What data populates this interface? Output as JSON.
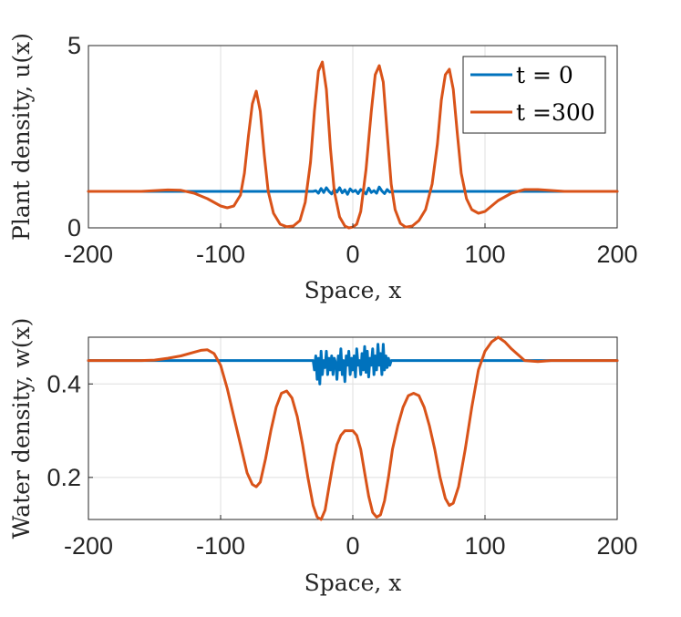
{
  "chart_data": [
    {
      "type": "line",
      "xlabel": "Space, x",
      "ylabel": "Plant density, u(x)",
      "xlim": [
        -200,
        200
      ],
      "ylim": [
        0,
        5
      ],
      "xticks": [
        "-200",
        "-100",
        "0",
        "100",
        "200"
      ],
      "yticks": [
        "0",
        "5"
      ],
      "xtick_values": [
        -200,
        -100,
        0,
        100,
        200
      ],
      "ytick_values": [
        0,
        5
      ],
      "grid": true,
      "legend": {
        "placement": "top-right",
        "entries": [
          "t = 0",
          "t =300"
        ]
      },
      "series": [
        {
          "name": "t = 0",
          "color": "#0072BD",
          "x": [
            -200,
            -30,
            -28,
            -26,
            -24,
            -22,
            -20,
            -18,
            -16,
            -14,
            -12,
            -10,
            -8,
            -6,
            -4,
            -2,
            0,
            2,
            4,
            6,
            8,
            10,
            12,
            14,
            16,
            18,
            20,
            22,
            24,
            26,
            28,
            30,
            200
          ],
          "y": [
            1.0,
            1.0,
            1.02,
            0.95,
            1.08,
            0.97,
            1.1,
            1.0,
            0.93,
            1.06,
            0.98,
            1.1,
            0.96,
            1.04,
            0.92,
            1.07,
            0.99,
            1.03,
            0.94,
            1.05,
            1.0,
            0.93,
            1.09,
            0.97,
            1.02,
            0.95,
            1.12,
            1.01,
            0.94,
            1.05,
            0.98,
            1.0,
            1.0
          ]
        },
        {
          "name": "t =300",
          "color": "#D95319",
          "x": [
            -200,
            -160,
            -140,
            -130,
            -120,
            -110,
            -100,
            -95,
            -90,
            -85,
            -82,
            -79,
            -76,
            -73,
            -70,
            -67,
            -64,
            -60,
            -55,
            -50,
            -45,
            -40,
            -36,
            -32,
            -29,
            -26,
            -23,
            -20,
            -17,
            -14,
            -10,
            -6,
            -3,
            0,
            3,
            6,
            10,
            14,
            17,
            20,
            23,
            26,
            29,
            32,
            36,
            40,
            45,
            50,
            55,
            60,
            64,
            67,
            70,
            73,
            76,
            79,
            82,
            86,
            90,
            95,
            100,
            110,
            120,
            130,
            140,
            160,
            200
          ],
          "y": [
            1.0,
            1.0,
            1.04,
            1.03,
            0.95,
            0.8,
            0.6,
            0.55,
            0.6,
            0.9,
            1.5,
            2.5,
            3.4,
            3.75,
            3.2,
            2.0,
            1.0,
            0.4,
            0.1,
            0.03,
            0.05,
            0.2,
            0.7,
            1.8,
            3.2,
            4.3,
            4.55,
            3.8,
            2.2,
            1.0,
            0.3,
            0.05,
            0.0,
            0.02,
            0.1,
            0.45,
            1.6,
            3.2,
            4.2,
            4.45,
            4.0,
            2.6,
            1.2,
            0.5,
            0.12,
            0.02,
            0.05,
            0.2,
            0.5,
            1.2,
            2.3,
            3.5,
            4.2,
            4.35,
            3.8,
            2.6,
            1.5,
            0.8,
            0.5,
            0.4,
            0.45,
            0.75,
            0.95,
            1.05,
            1.05,
            1.0,
            1.0
          ]
        }
      ]
    },
    {
      "type": "line",
      "xlabel": "Space, x",
      "ylabel": "Water density, w(x)",
      "xlim": [
        -200,
        200
      ],
      "ylim": [
        0.11,
        0.5
      ],
      "xticks": [
        "-200",
        "-100",
        "0",
        "100",
        "200"
      ],
      "yticks": [
        "0.2",
        "0.4"
      ],
      "xtick_values": [
        -200,
        -100,
        0,
        100,
        200
      ],
      "ytick_values": [
        0.2,
        0.4
      ],
      "grid": true,
      "series": [
        {
          "name": "t = 0",
          "color": "#0072BD",
          "x": [
            -200,
            -30,
            -29,
            -28,
            -27,
            -26,
            -25,
            -24,
            -23,
            -22,
            -21,
            -20,
            -19,
            -18,
            -17,
            -16,
            -15,
            -14,
            -13,
            -12,
            -11,
            -10,
            -9,
            -8,
            -7,
            -6,
            -5,
            -4,
            -3,
            -2,
            -1,
            0,
            1,
            2,
            3,
            4,
            5,
            6,
            7,
            8,
            9,
            10,
            11,
            12,
            13,
            14,
            15,
            16,
            17,
            18,
            19,
            20,
            21,
            22,
            23,
            24,
            25,
            26,
            27,
            28,
            29,
            30,
            200
          ],
          "y": [
            0.45,
            0.45,
            0.43,
            0.46,
            0.41,
            0.455,
            0.4,
            0.47,
            0.42,
            0.45,
            0.435,
            0.47,
            0.42,
            0.455,
            0.43,
            0.46,
            0.42,
            0.455,
            0.445,
            0.41,
            0.46,
            0.43,
            0.475,
            0.42,
            0.45,
            0.405,
            0.46,
            0.44,
            0.47,
            0.42,
            0.455,
            0.43,
            0.46,
            0.415,
            0.475,
            0.44,
            0.45,
            0.42,
            0.465,
            0.43,
            0.48,
            0.425,
            0.47,
            0.415,
            0.455,
            0.44,
            0.475,
            0.42,
            0.46,
            0.43,
            0.485,
            0.44,
            0.465,
            0.42,
            0.485,
            0.43,
            0.46,
            0.435,
            0.455,
            0.44,
            0.45,
            0.45,
            0.45
          ]
        },
        {
          "name": "t =300",
          "color": "#D95319",
          "x": [
            -200,
            -160,
            -150,
            -140,
            -130,
            -120,
            -115,
            -110,
            -105,
            -100,
            -95,
            -90,
            -85,
            -80,
            -76,
            -73,
            -70,
            -66,
            -62,
            -58,
            -54,
            -50,
            -46,
            -42,
            -38,
            -34,
            -30,
            -27,
            -24,
            -21,
            -18,
            -15,
            -12,
            -9,
            -6,
            -3,
            0,
            3,
            6,
            9,
            12,
            15,
            18,
            21,
            24,
            27,
            30,
            34,
            38,
            42,
            46,
            50,
            54,
            58,
            62,
            66,
            70,
            73,
            76,
            80,
            85,
            90,
            95,
            100,
            105,
            110,
            115,
            120,
            130,
            140,
            150,
            160,
            200
          ],
          "y": [
            0.45,
            0.45,
            0.451,
            0.455,
            0.46,
            0.468,
            0.472,
            0.473,
            0.465,
            0.44,
            0.39,
            0.33,
            0.27,
            0.21,
            0.185,
            0.18,
            0.19,
            0.24,
            0.3,
            0.35,
            0.38,
            0.385,
            0.37,
            0.33,
            0.27,
            0.2,
            0.14,
            0.115,
            0.11,
            0.13,
            0.18,
            0.23,
            0.27,
            0.29,
            0.3,
            0.3,
            0.3,
            0.29,
            0.26,
            0.21,
            0.16,
            0.125,
            0.115,
            0.12,
            0.15,
            0.2,
            0.26,
            0.31,
            0.35,
            0.375,
            0.38,
            0.375,
            0.35,
            0.31,
            0.26,
            0.2,
            0.155,
            0.14,
            0.145,
            0.18,
            0.26,
            0.35,
            0.43,
            0.47,
            0.49,
            0.5,
            0.49,
            0.475,
            0.45,
            0.448,
            0.45,
            0.45,
            0.45
          ]
        }
      ]
    }
  ]
}
